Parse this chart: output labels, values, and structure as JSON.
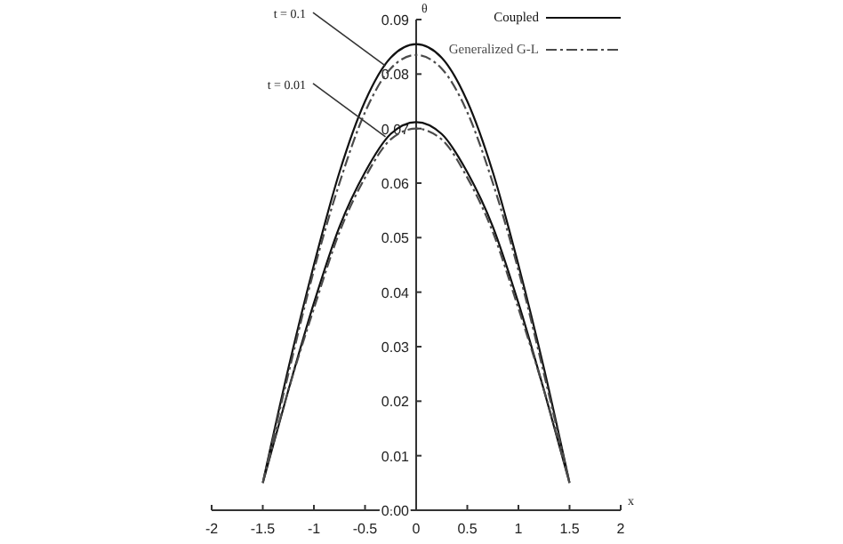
{
  "chart_data": {
    "type": "line",
    "xlabel": "x",
    "ylabel": "θ",
    "x": [
      -1.5,
      -1.25,
      -1,
      -0.75,
      -0.5,
      -0.25,
      0,
      0.25,
      0.5,
      0.75,
      1,
      1.25,
      1.5,
      null,
      -1.5,
      -1.25,
      -1,
      -0.75,
      -0.5,
      -0.25,
      0,
      0.25,
      0.5,
      0.75,
      1,
      1.25,
      1.5
    ],
    "series": [
      {
        "name": "Coupled",
        "color": "#111111",
        "line_style": "solid",
        "values": [
          0.005,
          0.026,
          0.045,
          0.062,
          0.075,
          0.083,
          0.0855,
          0.083,
          0.075,
          0.062,
          0.045,
          0.026,
          0.005,
          null,
          0.005,
          0.022,
          0.038,
          0.052,
          0.062,
          0.069,
          0.0712,
          0.069,
          0.062,
          0.052,
          0.038,
          0.022,
          0.005
        ]
      },
      {
        "name": "Generalized G-L",
        "color": "#4a4a4a",
        "line_style": "dashed",
        "values": [
          0.005,
          0.025,
          0.044,
          0.06,
          0.073,
          0.081,
          0.0835,
          0.081,
          0.073,
          0.06,
          0.044,
          0.025,
          0.005,
          null,
          0.005,
          0.022,
          0.037,
          0.051,
          0.061,
          0.068,
          0.07,
          0.068,
          0.061,
          0.051,
          0.037,
          0.022,
          0.005
        ]
      }
    ],
    "annotations": [
      {
        "text": "t = 0.1",
        "x": -0.3,
        "y": 0.0815
      },
      {
        "text": "t = 0.01",
        "x": -0.3,
        "y": 0.0685
      }
    ],
    "xlim": [
      -2,
      2
    ],
    "xticks": [
      -2,
      -1.5,
      -1,
      -0.5,
      0,
      0.5,
      1,
      1.5,
      2
    ],
    "ylim": [
      0,
      0.09
    ],
    "yticks": [
      {
        "value": 0,
        "label": "0.00"
      },
      {
        "value": 0.01,
        "label": "0.01"
      },
      {
        "value": 0.02,
        "label": "0.02"
      },
      {
        "value": 0.03,
        "label": "0.03"
      },
      {
        "value": 0.04,
        "label": "0.04"
      },
      {
        "value": 0.05,
        "label": "0.05"
      },
      {
        "value": 0.06,
        "label": "0.06"
      },
      {
        "value": 0.07,
        "label": "0.07"
      },
      {
        "value": 0.08,
        "label": "0.08"
      },
      {
        "value": 0.09,
        "label": "0.09"
      }
    ],
    "grid": false,
    "legend": "top right",
    "marker": "none"
  }
}
